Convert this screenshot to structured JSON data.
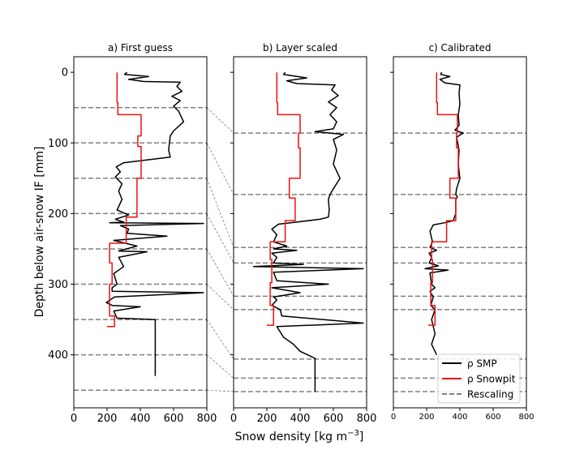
{
  "figure": {
    "ylabel": "Depth below air-snow IF [mm]",
    "xlabel_main": "Snow density [kg m",
    "xlabel_sup": "−3",
    "xlabel_close": "]"
  },
  "chart_data": [
    {
      "type": "line",
      "title": "a) First guess",
      "xlim": [
        0,
        800
      ],
      "ylim": [
        475,
        -22
      ],
      "xticks": [
        "0",
        "200",
        "400",
        "600",
        "800"
      ],
      "yticks": [
        "0",
        "100",
        "200",
        "300",
        "400"
      ],
      "rescaling_depths": [
        50,
        100,
        150,
        200,
        250,
        300,
        350,
        400,
        450
      ],
      "series": [
        {
          "name": "ρ SMP",
          "color": "#000000",
          "points": [
            [
              320,
              0
            ],
            [
              305,
              3
            ],
            [
              450,
              6
            ],
            [
              330,
              10
            ],
            [
              420,
              13
            ],
            [
              640,
              14
            ],
            [
              620,
              20
            ],
            [
              650,
              27
            ],
            [
              590,
              34
            ],
            [
              640,
              40
            ],
            [
              600,
              48
            ],
            [
              630,
              55
            ],
            [
              660,
              70
            ],
            [
              600,
              83
            ],
            [
              580,
              90
            ],
            [
              570,
              110
            ],
            [
              580,
              120
            ],
            [
              440,
              124
            ],
            [
              300,
              128
            ],
            [
              255,
              134
            ],
            [
              280,
              141
            ],
            [
              250,
              148
            ],
            [
              290,
              158
            ],
            [
              270,
              168
            ],
            [
              290,
              180
            ],
            [
              260,
              195
            ],
            [
              330,
              202
            ],
            [
              250,
              208
            ],
            [
              300,
              212
            ],
            [
              215,
              213
            ],
            [
              780,
              214
            ],
            [
              280,
              217
            ],
            [
              330,
              222
            ],
            [
              320,
              228
            ],
            [
              560,
              232
            ],
            [
              240,
              238
            ],
            [
              380,
              246
            ],
            [
              270,
              253
            ],
            [
              440,
              254
            ],
            [
              270,
              262
            ],
            [
              300,
              275
            ],
            [
              240,
              285
            ],
            [
              260,
              300
            ],
            [
              230,
              305
            ],
            [
              230,
              310
            ],
            [
              780,
              312
            ],
            [
              245,
              318
            ],
            [
              195,
              326
            ],
            [
              230,
              330
            ],
            [
              400,
              332
            ],
            [
              240,
              338
            ],
            [
              260,
              348
            ],
            [
              490,
              350
            ],
            [
              490,
              430
            ]
          ]
        },
        {
          "name": "ρ Snowpit",
          "color": "#ee1111",
          "points": [
            [
              260,
              0
            ],
            [
              260,
              43
            ],
            [
              265,
              43
            ],
            [
              265,
              60
            ],
            [
              405,
              60
            ],
            [
              405,
              90
            ],
            [
              385,
              90
            ],
            [
              385,
              105
            ],
            [
              405,
              105
            ],
            [
              405,
              150
            ],
            [
              380,
              150
            ],
            [
              380,
              205
            ],
            [
              315,
              205
            ],
            [
              315,
              242
            ],
            [
              215,
              242
            ],
            [
              215,
              270
            ],
            [
              230,
              270
            ],
            [
              230,
              300
            ],
            [
              215,
              300
            ],
            [
              215,
              345
            ],
            [
              245,
              345
            ],
            [
              245,
              360
            ],
            [
              200,
              360
            ]
          ]
        },
        {
          "name": "Rescaling",
          "color": "#808080"
        }
      ]
    },
    {
      "type": "line",
      "title": "b) Layer scaled",
      "xlim": [
        0,
        800
      ],
      "ylim": [
        475,
        -22
      ],
      "xticks": [
        "0",
        "200",
        "400",
        "600",
        "800"
      ],
      "yticks": [],
      "rescaling_depths": [
        86,
        173,
        248,
        270,
        317,
        336,
        406,
        433,
        452
      ],
      "series": [
        {
          "name": "ρ SMP",
          "color": "#000000",
          "points": [
            [
              310,
              0
            ],
            [
              300,
              3
            ],
            [
              440,
              8
            ],
            [
              320,
              12
            ],
            [
              380,
              16
            ],
            [
              610,
              18
            ],
            [
              590,
              25
            ],
            [
              630,
              33
            ],
            [
              570,
              42
            ],
            [
              620,
              50
            ],
            [
              580,
              60
            ],
            [
              620,
              70
            ],
            [
              600,
              80
            ],
            [
              490,
              84
            ],
            [
              660,
              88
            ],
            [
              600,
              95
            ],
            [
              620,
              110
            ],
            [
              600,
              130
            ],
            [
              640,
              150
            ],
            [
              600,
              165
            ],
            [
              580,
              173
            ],
            [
              570,
              180
            ],
            [
              575,
              195
            ],
            [
              570,
              205
            ],
            [
              520,
              208
            ],
            [
              380,
              212
            ],
            [
              270,
              215
            ],
            [
              230,
              222
            ],
            [
              260,
              230
            ],
            [
              240,
              240
            ],
            [
              320,
              246
            ],
            [
              240,
              250
            ],
            [
              380,
              252
            ],
            [
              230,
              256
            ],
            [
              260,
              262
            ],
            [
              240,
              270
            ],
            [
              420,
              272
            ],
            [
              120,
              275
            ],
            [
              780,
              278
            ],
            [
              240,
              283
            ],
            [
              260,
              295
            ],
            [
              570,
              300
            ],
            [
              230,
              305
            ],
            [
              400,
              312
            ],
            [
              240,
              318
            ],
            [
              260,
              322
            ],
            [
              230,
              330
            ],
            [
              280,
              336
            ],
            [
              290,
              345
            ],
            [
              780,
              355
            ],
            [
              260,
              360
            ],
            [
              300,
              375
            ],
            [
              360,
              385
            ],
            [
              400,
              395
            ],
            [
              490,
              405
            ],
            [
              490,
              452
            ]
          ]
        },
        {
          "name": "ρ Snowpit",
          "color": "#ee1111",
          "points": [
            [
              260,
              0
            ],
            [
              260,
              43
            ],
            [
              265,
              43
            ],
            [
              265,
              60
            ],
            [
              400,
              60
            ],
            [
              400,
              86
            ],
            [
              390,
              86
            ],
            [
              390,
              107
            ],
            [
              400,
              107
            ],
            [
              400,
              150
            ],
            [
              335,
              150
            ],
            [
              335,
              178
            ],
            [
              370,
              178
            ],
            [
              370,
              210
            ],
            [
              310,
              210
            ],
            [
              310,
              240
            ],
            [
              220,
              240
            ],
            [
              220,
              265
            ],
            [
              230,
              265
            ],
            [
              230,
              298
            ],
            [
              220,
              298
            ],
            [
              220,
              330
            ],
            [
              240,
              330
            ],
            [
              240,
              358
            ],
            [
              200,
              358
            ]
          ]
        },
        {
          "name": "Rescaling",
          "color": "#808080"
        }
      ]
    },
    {
      "type": "line",
      "title": "c) Calibrated",
      "xlim": [
        0,
        800
      ],
      "ylim": [
        475,
        -22
      ],
      "xticks": [
        "0",
        "200",
        "400",
        "600",
        "800"
      ],
      "yticks": [],
      "rescaling_depths": [
        86,
        173,
        248,
        270,
        317,
        336,
        406,
        433,
        452
      ],
      "legend_position": "lower-right",
      "series": [
        {
          "name": "ρ SMP",
          "color": "#000000",
          "points": [
            [
              290,
              0
            ],
            [
              285,
              3
            ],
            [
              340,
              6
            ],
            [
              280,
              10
            ],
            [
              310,
              15
            ],
            [
              400,
              18
            ],
            [
              395,
              30
            ],
            [
              400,
              45
            ],
            [
              390,
              60
            ],
            [
              395,
              75
            ],
            [
              370,
              82
            ],
            [
              420,
              86
            ],
            [
              380,
              92
            ],
            [
              395,
              110
            ],
            [
              390,
              130
            ],
            [
              400,
              150
            ],
            [
              380,
              165
            ],
            [
              375,
              173
            ],
            [
              385,
              176
            ],
            [
              375,
              180
            ],
            [
              375,
              200
            ],
            [
              360,
              210
            ],
            [
              310,
              213
            ],
            [
              240,
              216
            ],
            [
              220,
              225
            ],
            [
              235,
              240
            ],
            [
              220,
              248
            ],
            [
              260,
              252
            ],
            [
              215,
              256
            ],
            [
              230,
              262
            ],
            [
              215,
              270
            ],
            [
              270,
              274
            ],
            [
              190,
              278
            ],
            [
              330,
              280
            ],
            [
              220,
              284
            ],
            [
              230,
              300
            ],
            [
              250,
              305
            ],
            [
              220,
              310
            ],
            [
              240,
              318
            ],
            [
              225,
              330
            ],
            [
              250,
              336
            ],
            [
              230,
              350
            ],
            [
              250,
              370
            ],
            [
              230,
              385
            ],
            [
              260,
              400
            ]
          ]
        },
        {
          "name": "ρ Snowpit",
          "color": "#ee1111",
          "points": [
            [
              260,
              0
            ],
            [
              260,
              43
            ],
            [
              265,
              43
            ],
            [
              265,
              60
            ],
            [
              385,
              60
            ],
            [
              385,
              86
            ],
            [
              380,
              86
            ],
            [
              380,
              107
            ],
            [
              390,
              107
            ],
            [
              390,
              150
            ],
            [
              340,
              150
            ],
            [
              340,
              178
            ],
            [
              375,
              178
            ],
            [
              375,
              210
            ],
            [
              320,
              210
            ],
            [
              320,
              240
            ],
            [
              230,
              240
            ],
            [
              230,
              265
            ],
            [
              235,
              265
            ],
            [
              235,
              298
            ],
            [
              225,
              298
            ],
            [
              225,
              330
            ],
            [
              250,
              330
            ],
            [
              250,
              358
            ],
            [
              210,
              358
            ]
          ]
        },
        {
          "name": "Rescaling",
          "color": "#808080"
        }
      ]
    }
  ]
}
